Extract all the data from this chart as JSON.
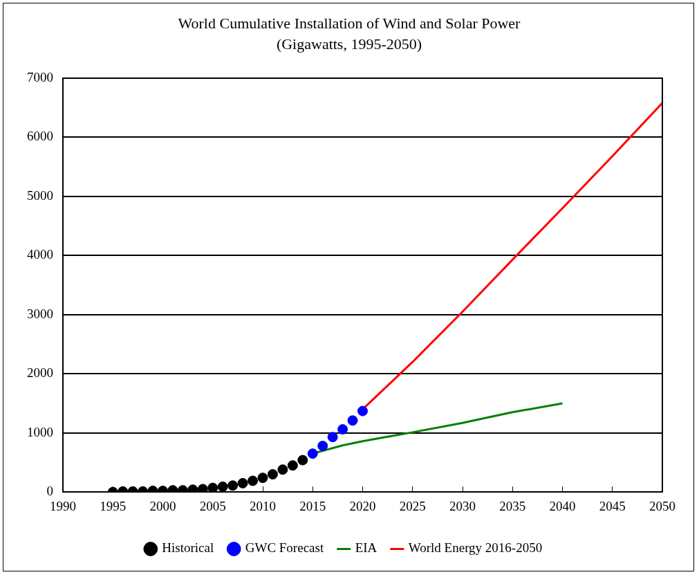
{
  "chart_data": {
    "type": "line",
    "title": "World Cumulative Installation of Wind and Solar Power",
    "subtitle": "(Gigawatts, 1995-2050)",
    "xlim": [
      1990,
      2050
    ],
    "xticks": [
      1990,
      1995,
      2000,
      2005,
      2010,
      2015,
      2020,
      2025,
      2030,
      2035,
      2040,
      2045,
      2050
    ],
    "ylim": [
      0,
      7000
    ],
    "yticks": [
      0,
      1000,
      2000,
      3000,
      4000,
      5000,
      6000,
      7000
    ],
    "grid": "y",
    "legend": "bottom",
    "line_style": "solid",
    "series": [
      {
        "name": "Historical",
        "type": "scatter",
        "marker": "circle",
        "color": "#000000",
        "x": [
          1995,
          1996,
          1997,
          1998,
          1999,
          2000,
          2001,
          2002,
          2003,
          2004,
          2005,
          2006,
          2007,
          2008,
          2009,
          2010,
          2011,
          2012,
          2013,
          2014
        ],
        "values": [
          0,
          10,
          10,
          10,
          20,
          20,
          30,
          30,
          40,
          50,
          70,
          90,
          110,
          150,
          190,
          240,
          300,
          380,
          450,
          540
        ]
      },
      {
        "name": "GWC Forecast",
        "type": "scatter",
        "marker": "circle",
        "color": "#0000ff",
        "x": [
          2015,
          2016,
          2017,
          2018,
          2019,
          2020
        ],
        "values": [
          650,
          780,
          930,
          1060,
          1210,
          1370
        ]
      },
      {
        "name": "EIA",
        "color": "#008000",
        "x": [
          2015,
          2018,
          2020,
          2022,
          2025,
          2030,
          2035,
          2040
        ],
        "values": [
          650,
          790,
          860,
          920,
          1010,
          1170,
          1350,
          1500
        ]
      },
      {
        "name": "World Energy 2016-2050",
        "color": "#ff0000",
        "x": [
          2020,
          2025,
          2030,
          2035,
          2040,
          2045,
          2050
        ],
        "values": [
          1400,
          2200,
          3050,
          3930,
          4800,
          5680,
          6580
        ]
      }
    ]
  }
}
